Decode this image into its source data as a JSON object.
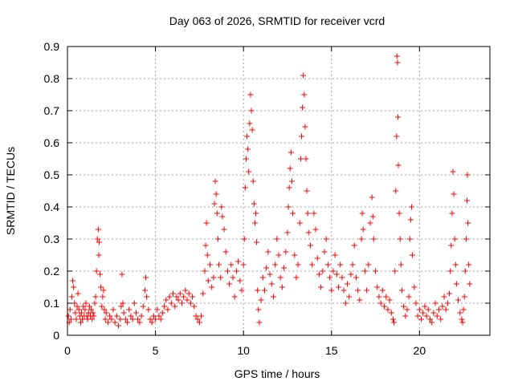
{
  "chart_data": {
    "type": "scatter",
    "title": "Day 063 of 2026, SRMTID for receiver vcrd",
    "xlabel": "GPS time / hours",
    "ylabel": "SRMTID / TECUs",
    "xlim": [
      0,
      24
    ],
    "ylim": [
      0,
      0.9
    ],
    "xticks": [
      0,
      5,
      10,
      15,
      20
    ],
    "xtick_labels": [
      "0",
      "5",
      "10",
      "15",
      "20"
    ],
    "yticks": [
      0,
      0.1,
      0.2,
      0.3,
      0.4,
      0.5,
      0.6,
      0.7,
      0.8,
      0.9
    ],
    "ytick_labels": [
      "0",
      "0.1",
      "0.2",
      "0.3",
      "0.4",
      "0.5",
      "0.6",
      "0.7",
      "0.8",
      "0.9"
    ],
    "grid": true,
    "marker": "+",
    "color": "#ff0000",
    "series": [
      {
        "name": "SRMTID",
        "points": [
          [
            0.05,
            0.06
          ],
          [
            0.1,
            0.04
          ],
          [
            0.15,
            0.08
          ],
          [
            0.2,
            0.05
          ],
          [
            0.25,
            0.12
          ],
          [
            0.3,
            0.17
          ],
          [
            0.35,
            0.15
          ],
          [
            0.4,
            0.1
          ],
          [
            0.45,
            0.07
          ],
          [
            0.5,
            0.05
          ],
          [
            0.55,
            0.09
          ],
          [
            0.6,
            0.13
          ],
          [
            0.65,
            0.08
          ],
          [
            0.7,
            0.06
          ],
          [
            0.75,
            0.04
          ],
          [
            0.8,
            0.07
          ],
          [
            0.85,
            0.05
          ],
          [
            0.9,
            0.09
          ],
          [
            0.95,
            0.06
          ],
          [
            1.0,
            0.08
          ],
          [
            1.05,
            0.1
          ],
          [
            1.1,
            0.06
          ],
          [
            1.15,
            0.05
          ],
          [
            1.2,
            0.07
          ],
          [
            1.25,
            0.09
          ],
          [
            1.3,
            0.06
          ],
          [
            1.35,
            0.08
          ],
          [
            1.4,
            0.05
          ],
          [
            1.45,
            0.07
          ],
          [
            1.5,
            0.06
          ],
          [
            1.55,
            0.1
          ],
          [
            1.6,
            0.12
          ],
          [
            1.65,
            0.2
          ],
          [
            1.7,
            0.3
          ],
          [
            1.75,
            0.33
          ],
          [
            1.78,
            0.25
          ],
          [
            1.8,
            0.29
          ],
          [
            1.85,
            0.19
          ],
          [
            1.9,
            0.15
          ],
          [
            1.95,
            0.09
          ],
          [
            2.0,
            0.12
          ],
          [
            2.05,
            0.14
          ],
          [
            2.1,
            0.08
          ],
          [
            2.15,
            0.05
          ],
          [
            2.2,
            0.07
          ],
          [
            2.3,
            0.04
          ],
          [
            2.4,
            0.06
          ],
          [
            2.5,
            0.05
          ],
          [
            2.6,
            0.08
          ],
          [
            2.7,
            0.04
          ],
          [
            2.8,
            0.06
          ],
          [
            2.9,
            0.03
          ],
          [
            3.0,
            0.05
          ],
          [
            3.05,
            0.09
          ],
          [
            3.1,
            0.19
          ],
          [
            3.15,
            0.1
          ],
          [
            3.2,
            0.07
          ],
          [
            3.3,
            0.05
          ],
          [
            3.4,
            0.04
          ],
          [
            3.5,
            0.08
          ],
          [
            3.6,
            0.06
          ],
          [
            3.7,
            0.05
          ],
          [
            3.8,
            0.1
          ],
          [
            3.9,
            0.07
          ],
          [
            4.0,
            0.05
          ],
          [
            4.1,
            0.04
          ],
          [
            4.2,
            0.06
          ],
          [
            4.3,
            0.09
          ],
          [
            4.4,
            0.14
          ],
          [
            4.45,
            0.18
          ],
          [
            4.5,
            0.12
          ],
          [
            4.6,
            0.08
          ],
          [
            4.7,
            0.05
          ],
          [
            4.8,
            0.04
          ],
          [
            4.9,
            0.06
          ],
          [
            5.0,
            0.05
          ],
          [
            5.1,
            0.08
          ],
          [
            5.2,
            0.06
          ],
          [
            5.3,
            0.05
          ],
          [
            5.4,
            0.07
          ],
          [
            5.5,
            0.09
          ],
          [
            5.6,
            0.11
          ],
          [
            5.7,
            0.08
          ],
          [
            5.8,
            0.12
          ],
          [
            5.9,
            0.1
          ],
          [
            6.0,
            0.13
          ],
          [
            6.1,
            0.09
          ],
          [
            6.2,
            0.12
          ],
          [
            6.3,
            0.11
          ],
          [
            6.4,
            0.13
          ],
          [
            6.5,
            0.1
          ],
          [
            6.6,
            0.12
          ],
          [
            6.7,
            0.14
          ],
          [
            6.8,
            0.11
          ],
          [
            6.9,
            0.13
          ],
          [
            7.0,
            0.1
          ],
          [
            7.1,
            0.12
          ],
          [
            7.2,
            0.09
          ],
          [
            7.3,
            0.06
          ],
          [
            7.4,
            0.05
          ],
          [
            7.5,
            0.04
          ],
          [
            7.6,
            0.06
          ],
          [
            7.7,
            0.13
          ],
          [
            7.8,
            0.2
          ],
          [
            7.85,
            0.28
          ],
          [
            7.9,
            0.35
          ],
          [
            7.95,
            0.25
          ],
          [
            8.0,
            0.17
          ],
          [
            8.1,
            0.22
          ],
          [
            8.2,
            0.15
          ],
          [
            8.3,
            0.18
          ],
          [
            8.35,
            0.41
          ],
          [
            8.4,
            0.48
          ],
          [
            8.45,
            0.44
          ],
          [
            8.5,
            0.38
          ],
          [
            8.55,
            0.3
          ],
          [
            8.6,
            0.22
          ],
          [
            8.7,
            0.18
          ],
          [
            8.75,
            0.4
          ],
          [
            8.8,
            0.37
          ],
          [
            8.9,
            0.33
          ],
          [
            9.0,
            0.26
          ],
          [
            9.1,
            0.2
          ],
          [
            9.2,
            0.16
          ],
          [
            9.3,
            0.22
          ],
          [
            9.4,
            0.18
          ],
          [
            9.5,
            0.12
          ],
          [
            9.6,
            0.2
          ],
          [
            9.7,
            0.23
          ],
          [
            9.8,
            0.17
          ],
          [
            9.9,
            0.14
          ],
          [
            10.0,
            0.22
          ],
          [
            10.05,
            0.3
          ],
          [
            10.1,
            0.46
          ],
          [
            10.15,
            0.55
          ],
          [
            10.2,
            0.62
          ],
          [
            10.25,
            0.58
          ],
          [
            10.3,
            0.51
          ],
          [
            10.35,
            0.66
          ],
          [
            10.4,
            0.75
          ],
          [
            10.45,
            0.7
          ],
          [
            10.5,
            0.64
          ],
          [
            10.55,
            0.48
          ],
          [
            10.6,
            0.41
          ],
          [
            10.65,
            0.35
          ],
          [
            10.7,
            0.38
          ],
          [
            10.75,
            0.29
          ],
          [
            10.8,
            0.14
          ],
          [
            10.85,
            0.08
          ],
          [
            10.9,
            0.04
          ],
          [
            11.0,
            0.11
          ],
          [
            11.1,
            0.18
          ],
          [
            11.2,
            0.14
          ],
          [
            11.3,
            0.21
          ],
          [
            11.4,
            0.26
          ],
          [
            11.5,
            0.19
          ],
          [
            11.6,
            0.16
          ],
          [
            11.7,
            0.12
          ],
          [
            11.8,
            0.22
          ],
          [
            11.9,
            0.3
          ],
          [
            12.0,
            0.25
          ],
          [
            12.1,
            0.18
          ],
          [
            12.2,
            0.15
          ],
          [
            12.3,
            0.21
          ],
          [
            12.4,
            0.26
          ],
          [
            12.5,
            0.32
          ],
          [
            12.55,
            0.4
          ],
          [
            12.6,
            0.46
          ],
          [
            12.65,
            0.52
          ],
          [
            12.7,
            0.57
          ],
          [
            12.75,
            0.48
          ],
          [
            12.8,
            0.38
          ],
          [
            12.9,
            0.25
          ],
          [
            13.0,
            0.18
          ],
          [
            13.1,
            0.22
          ],
          [
            13.2,
            0.35
          ],
          [
            13.25,
            0.55
          ],
          [
            13.3,
            0.62
          ],
          [
            13.35,
            0.71
          ],
          [
            13.4,
            0.81
          ],
          [
            13.45,
            0.75
          ],
          [
            13.5,
            0.65
          ],
          [
            13.55,
            0.55
          ],
          [
            13.6,
            0.45
          ],
          [
            13.65,
            0.38
          ],
          [
            13.7,
            0.32
          ],
          [
            13.8,
            0.28
          ],
          [
            13.9,
            0.22
          ],
          [
            14.0,
            0.38
          ],
          [
            14.1,
            0.33
          ],
          [
            14.2,
            0.24
          ],
          [
            14.3,
            0.19
          ],
          [
            14.4,
            0.15
          ],
          [
            14.5,
            0.2
          ],
          [
            14.6,
            0.26
          ],
          [
            14.7,
            0.3
          ],
          [
            14.8,
            0.22
          ],
          [
            14.9,
            0.18
          ],
          [
            15.0,
            0.14
          ],
          [
            15.1,
            0.2
          ],
          [
            15.2,
            0.25
          ],
          [
            15.3,
            0.19
          ],
          [
            15.4,
            0.15
          ],
          [
            15.5,
            0.22
          ],
          [
            15.6,
            0.18
          ],
          [
            15.7,
            0.14
          ],
          [
            15.8,
            0.1
          ],
          [
            15.9,
            0.16
          ],
          [
            16.0,
            0.12
          ],
          [
            16.1,
            0.19
          ],
          [
            16.2,
            0.22
          ],
          [
            16.3,
            0.28
          ],
          [
            16.4,
            0.18
          ],
          [
            16.5,
            0.14
          ],
          [
            16.6,
            0.11
          ],
          [
            16.7,
            0.3
          ],
          [
            16.75,
            0.38
          ],
          [
            16.8,
            0.33
          ],
          [
            16.9,
            0.2
          ],
          [
            17.0,
            0.14
          ],
          [
            17.1,
            0.22
          ],
          [
            17.2,
            0.35
          ],
          [
            17.3,
            0.43
          ],
          [
            17.35,
            0.37
          ],
          [
            17.4,
            0.3
          ],
          [
            17.5,
            0.2
          ],
          [
            17.6,
            0.15
          ],
          [
            17.7,
            0.12
          ],
          [
            17.8,
            0.1
          ],
          [
            17.9,
            0.14
          ],
          [
            18.0,
            0.09
          ],
          [
            18.1,
            0.12
          ],
          [
            18.2,
            0.08
          ],
          [
            18.3,
            0.11
          ],
          [
            18.4,
            0.07
          ],
          [
            18.5,
            0.05
          ],
          [
            18.55,
            0.04
          ],
          [
            18.6,
            0.2
          ],
          [
            18.65,
            0.45
          ],
          [
            18.7,
            0.62
          ],
          [
            18.72,
            0.87
          ],
          [
            18.75,
            0.85
          ],
          [
            18.78,
            0.68
          ],
          [
            18.8,
            0.53
          ],
          [
            18.85,
            0.38
          ],
          [
            18.9,
            0.3
          ],
          [
            18.95,
            0.22
          ],
          [
            19.0,
            0.14
          ],
          [
            19.1,
            0.09
          ],
          [
            19.2,
            0.06
          ],
          [
            19.3,
            0.08
          ],
          [
            19.4,
            0.12
          ],
          [
            19.45,
            0.3
          ],
          [
            19.5,
            0.36
          ],
          [
            19.55,
            0.4
          ],
          [
            19.6,
            0.25
          ],
          [
            19.7,
            0.15
          ],
          [
            19.8,
            0.1
          ],
          [
            19.9,
            0.06
          ],
          [
            20.0,
            0.08
          ],
          [
            20.1,
            0.05
          ],
          [
            20.2,
            0.07
          ],
          [
            20.3,
            0.09
          ],
          [
            20.4,
            0.06
          ],
          [
            20.5,
            0.08
          ],
          [
            20.6,
            0.05
          ],
          [
            20.7,
            0.04
          ],
          [
            20.8,
            0.07
          ],
          [
            20.9,
            0.1
          ],
          [
            21.0,
            0.06
          ],
          [
            21.1,
            0.08
          ],
          [
            21.2,
            0.05
          ],
          [
            21.3,
            0.09
          ],
          [
            21.4,
            0.12
          ],
          [
            21.5,
            0.08
          ],
          [
            21.6,
            0.1
          ],
          [
            21.7,
            0.13
          ],
          [
            21.75,
            0.2
          ],
          [
            21.8,
            0.28
          ],
          [
            21.85,
            0.38
          ],
          [
            21.9,
            0.51
          ],
          [
            21.95,
            0.44
          ],
          [
            22.0,
            0.3
          ],
          [
            22.05,
            0.22
          ],
          [
            22.1,
            0.16
          ],
          [
            22.2,
            0.11
          ],
          [
            22.3,
            0.07
          ],
          [
            22.4,
            0.05
          ],
          [
            22.45,
            0.04
          ],
          [
            22.5,
            0.08
          ],
          [
            22.55,
            0.12
          ],
          [
            22.6,
            0.2
          ],
          [
            22.65,
            0.3
          ],
          [
            22.7,
            0.42
          ],
          [
            22.72,
            0.5
          ],
          [
            22.75,
            0.35
          ],
          [
            22.8,
            0.22
          ],
          [
            22.85,
            0.16
          ]
        ]
      }
    ]
  }
}
